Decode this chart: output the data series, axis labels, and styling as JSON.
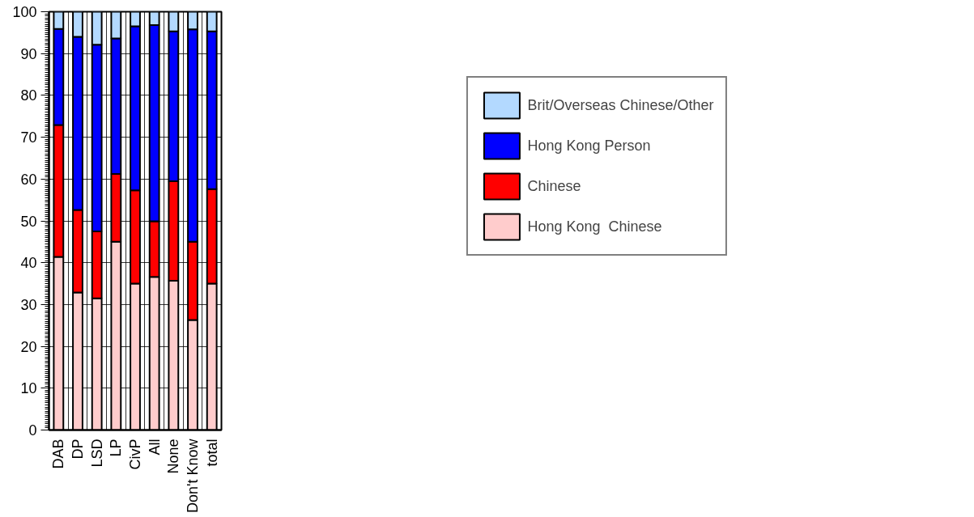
{
  "chart_data": {
    "type": "bar",
    "stacked": true,
    "categories": [
      "DAB",
      "DP",
      "LSD",
      "LP",
      "CivP",
      "All",
      "None",
      "Don't Know",
      "total"
    ],
    "series": [
      {
        "name": "Hong Kong  Chinese",
        "color": "#ffcccc",
        "values": [
          41.4,
          32.9,
          31.5,
          45.0,
          35.0,
          36.6,
          35.7,
          26.3,
          35.0
        ]
      },
      {
        "name": "Chinese",
        "color": "#ff0000",
        "values": [
          31.5,
          19.7,
          16.0,
          16.2,
          22.3,
          13.3,
          23.8,
          18.7,
          22.6
        ]
      },
      {
        "name": "Hong Kong Person",
        "color": "#0000ff",
        "values": [
          23.0,
          41.4,
          44.6,
          32.4,
          39.2,
          46.9,
          35.8,
          50.8,
          37.7
        ]
      },
      {
        "name": "Brit/Overseas Chinese/Other",
        "color": "#b3d9ff",
        "values": [
          4.1,
          6.0,
          7.9,
          6.4,
          3.5,
          3.2,
          4.7,
          4.2,
          4.7
        ]
      }
    ],
    "ylim": [
      0,
      100
    ],
    "yticks": [
      0,
      10,
      20,
      30,
      40,
      50,
      60,
      70,
      80,
      90,
      100
    ],
    "grid": true,
    "legend": "right"
  }
}
